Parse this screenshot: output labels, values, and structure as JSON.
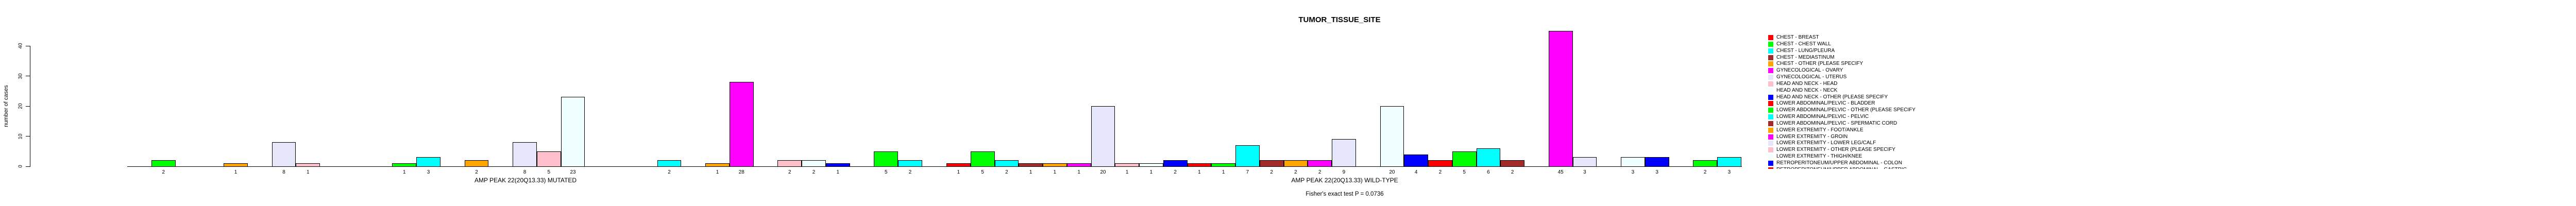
{
  "title": "TUMOR_TISSUE_SITE",
  "y_axis": {
    "label": "number of cases",
    "ticks": [
      0,
      10,
      20,
      30,
      40
    ]
  },
  "footnote": "Fisher's exact test P = 0.0736",
  "palette": [
    "#FF0000",
    "#00FF00",
    "#00FFFF",
    "#A52A2A",
    "#FFA500",
    "#FF00FF",
    "#E6E6FA",
    "#FFC0CB",
    "#F0FFFF",
    "#0000FF"
  ],
  "legend": {
    "position": "right",
    "last_entry_clipped": true,
    "entries": [
      {
        "label": "CHEST - BREAST",
        "color": "#FF0000"
      },
      {
        "label": "CHEST - CHEST WALL",
        "color": "#00FF00"
      },
      {
        "label": "CHEST - LUNG/PLEURA",
        "color": "#00FFFF"
      },
      {
        "label": "CHEST - MEDIASTINUM",
        "color": "#A52A2A"
      },
      {
        "label": "CHEST - OTHER (PLEASE SPECIFY",
        "color": "#FFA500"
      },
      {
        "label": "GYNECOLOGICAL - OVARY",
        "color": "#FF00FF"
      },
      {
        "label": "GYNECOLOGICAL - UTERUS",
        "color": "#E6E6FA"
      },
      {
        "label": "HEAD AND NECK - HEAD",
        "color": "#FFC0CB"
      },
      {
        "label": "HEAD AND NECK - NECK",
        "color": "#F0FFFF"
      },
      {
        "label": "HEAD AND NECK - OTHER (PLEASE SPECIFY",
        "color": "#0000FF"
      },
      {
        "label": "LOWER ABDOMINAL/PELVIC - BLADDER",
        "color": "#FF0000"
      },
      {
        "label": "LOWER ABDOMINAL/PELVIC - OTHER (PLEASE SPECIFY",
        "color": "#00FF00"
      },
      {
        "label": "LOWER ABDOMINAL/PELVIC - PELVIC",
        "color": "#00FFFF"
      },
      {
        "label": "LOWER ABDOMINAL/PELVIC - SPERMATIC CORD",
        "color": "#A52A2A"
      },
      {
        "label": "LOWER EXTREMITY - FOOT/ANKLE",
        "color": "#FFA500"
      },
      {
        "label": "LOWER EXTREMITY - GROIN",
        "color": "#FF00FF"
      },
      {
        "label": "LOWER EXTREMITY - LOWER LEG/CALF",
        "color": "#E6E6FA"
      },
      {
        "label": "LOWER EXTREMITY - OTHER (PLEASE SPECIFY",
        "color": "#FFC0CB"
      },
      {
        "label": "LOWER EXTREMITY - THIGH/KNEE",
        "color": "#F0FFFF"
      },
      {
        "label": "RETROPERITONEUM/UPPER ABDOMINAL - COLON",
        "color": "#0000FF"
      },
      {
        "label": "RETROPERITONEUM/UPPER ABDOMINAL - GASTRIC",
        "color": "#FF0000"
      }
    ]
  },
  "chart_data": {
    "type": "bar",
    "title": "TUMOR_TISSUE_SITE",
    "ylabel": "number of cases",
    "ylim": [
      0,
      45
    ],
    "yticks": [
      0,
      10,
      20,
      30,
      40
    ],
    "grid": false,
    "legend_position": "right",
    "slots_per_group": 33,
    "color_rule": "palette[slot % 10]",
    "annotation": "Fisher's exact test P = 0.0736",
    "groups": [
      {
        "label": "AMP PEAK 22(20Q13.33) MUTATED",
        "bars": [
          {
            "slot": 1,
            "value": 2
          },
          {
            "slot": 4,
            "value": 1
          },
          {
            "slot": 6,
            "value": 8
          },
          {
            "slot": 7,
            "value": 1
          },
          {
            "slot": 11,
            "value": 1
          },
          {
            "slot": 12,
            "value": 3
          },
          {
            "slot": 14,
            "value": 2
          },
          {
            "slot": 16,
            "value": 8
          },
          {
            "slot": 17,
            "value": 5
          },
          {
            "slot": 18,
            "value": 23
          },
          {
            "slot": 22,
            "value": 2
          },
          {
            "slot": 24,
            "value": 1
          },
          {
            "slot": 25,
            "value": 28
          },
          {
            "slot": 27,
            "value": 2
          },
          {
            "slot": 28,
            "value": 2
          },
          {
            "slot": 29,
            "value": 1
          },
          {
            "slot": 31,
            "value": 5
          },
          {
            "slot": 32,
            "value": 2
          }
        ]
      },
      {
        "label": "AMP PEAK 22(20Q13.33) WILD-TYPE",
        "bars": [
          {
            "slot": 0,
            "value": 1
          },
          {
            "slot": 1,
            "value": 5
          },
          {
            "slot": 2,
            "value": 2
          },
          {
            "slot": 3,
            "value": 1
          },
          {
            "slot": 4,
            "value": 1
          },
          {
            "slot": 5,
            "value": 1
          },
          {
            "slot": 6,
            "value": 20
          },
          {
            "slot": 7,
            "value": 1
          },
          {
            "slot": 8,
            "value": 1
          },
          {
            "slot": 9,
            "value": 2
          },
          {
            "slot": 10,
            "value": 1
          },
          {
            "slot": 11,
            "value": 1
          },
          {
            "slot": 12,
            "value": 7
          },
          {
            "slot": 13,
            "value": 2
          },
          {
            "slot": 14,
            "value": 2
          },
          {
            "slot": 15,
            "value": 2
          },
          {
            "slot": 16,
            "value": 9
          },
          {
            "slot": 18,
            "value": 20
          },
          {
            "slot": 19,
            "value": 4
          },
          {
            "slot": 20,
            "value": 2
          },
          {
            "slot": 21,
            "value": 5
          },
          {
            "slot": 22,
            "value": 6
          },
          {
            "slot": 23,
            "value": 2
          },
          {
            "slot": 25,
            "value": 45
          },
          {
            "slot": 26,
            "value": 3
          },
          {
            "slot": 28,
            "value": 3
          },
          {
            "slot": 29,
            "value": 3
          },
          {
            "slot": 31,
            "value": 2
          },
          {
            "slot": 32,
            "value": 3
          }
        ]
      }
    ]
  }
}
